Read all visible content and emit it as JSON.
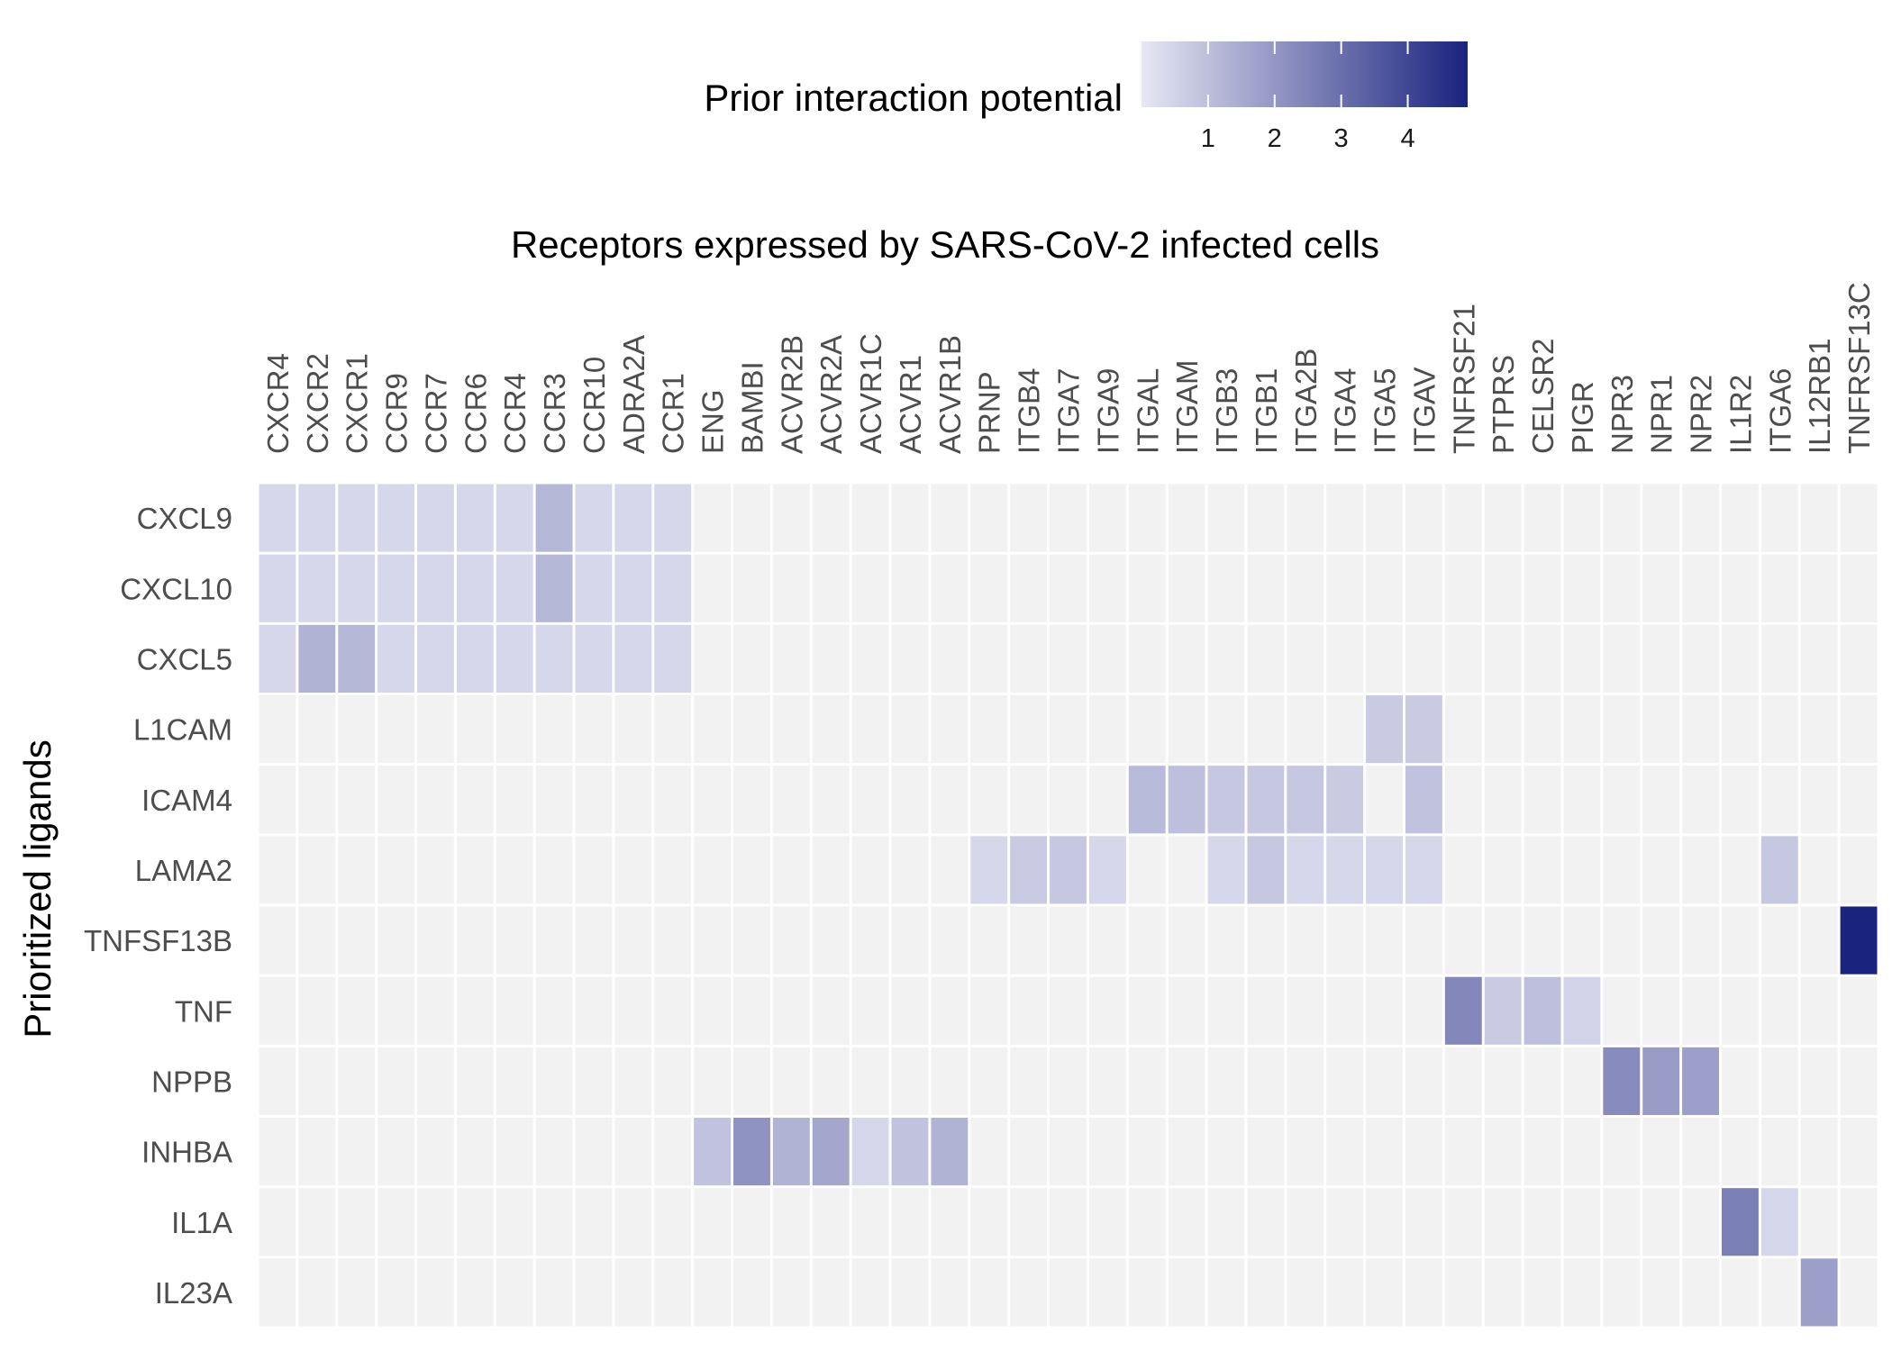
{
  "chart_data": {
    "type": "heatmap",
    "title": "Receptors expressed by SARS-CoV-2 infected cells",
    "ylabel": "Prioritized ligands",
    "legend": {
      "title": "Prior interaction potential",
      "placement": "top",
      "ticks": [
        1,
        2,
        3,
        4
      ],
      "range": [
        0,
        4.9
      ],
      "color_low": "#e7e7f4",
      "color_high": "#1a237e"
    },
    "empty_color": "#f2f2f2",
    "columns": [
      "CXCR4",
      "CXCR2",
      "CXCR1",
      "CCR9",
      "CCR7",
      "CCR6",
      "CCR4",
      "CCR3",
      "CCR10",
      "ADRA2A",
      "CCR1",
      "ENG",
      "BAMBI",
      "ACVR2B",
      "ACVR2A",
      "ACVR1C",
      "ACVR1",
      "ACVR1B",
      "PRNP",
      "ITGB4",
      "ITGA7",
      "ITGA9",
      "ITGAL",
      "ITGAM",
      "ITGB3",
      "ITGB1",
      "ITGA2B",
      "ITGA4",
      "ITGA5",
      "ITGAV",
      "TNFRSF21",
      "PTPRS",
      "CELSR2",
      "PIGR",
      "NPR3",
      "NPR1",
      "NPR2",
      "IL1R2",
      "ITGA6",
      "IL12RB1",
      "TNFRSF13C"
    ],
    "rows": [
      "CXCL9",
      "CXCL10",
      "CXCL5",
      "L1CAM",
      "ICAM4",
      "LAMA2",
      "TNFSF13B",
      "TNF",
      "NPPB",
      "INHBA",
      "IL1A",
      "IL23A"
    ],
    "cells": [
      {
        "row": "CXCL9",
        "col": "CXCR4",
        "value": 0.4
      },
      {
        "row": "CXCL9",
        "col": "CXCR2",
        "value": 0.4
      },
      {
        "row": "CXCL9",
        "col": "CXCR1",
        "value": 0.4
      },
      {
        "row": "CXCL9",
        "col": "CCR9",
        "value": 0.4
      },
      {
        "row": "CXCL9",
        "col": "CCR7",
        "value": 0.4
      },
      {
        "row": "CXCL9",
        "col": "CCR6",
        "value": 0.4
      },
      {
        "row": "CXCL9",
        "col": "CCR4",
        "value": 0.4
      },
      {
        "row": "CXCL9",
        "col": "CCR3",
        "value": 1.2
      },
      {
        "row": "CXCL9",
        "col": "CCR10",
        "value": 0.4
      },
      {
        "row": "CXCL9",
        "col": "ADRA2A",
        "value": 0.4
      },
      {
        "row": "CXCL9",
        "col": "CCR1",
        "value": 0.4
      },
      {
        "row": "CXCL10",
        "col": "CXCR4",
        "value": 0.4
      },
      {
        "row": "CXCL10",
        "col": "CXCR2",
        "value": 0.4
      },
      {
        "row": "CXCL10",
        "col": "CXCR1",
        "value": 0.4
      },
      {
        "row": "CXCL10",
        "col": "CCR9",
        "value": 0.4
      },
      {
        "row": "CXCL10",
        "col": "CCR7",
        "value": 0.4
      },
      {
        "row": "CXCL10",
        "col": "CCR6",
        "value": 0.4
      },
      {
        "row": "CXCL10",
        "col": "CCR4",
        "value": 0.4
      },
      {
        "row": "CXCL10",
        "col": "CCR3",
        "value": 1.2
      },
      {
        "row": "CXCL10",
        "col": "CCR10",
        "value": 0.4
      },
      {
        "row": "CXCL10",
        "col": "ADRA2A",
        "value": 0.4
      },
      {
        "row": "CXCL10",
        "col": "CCR1",
        "value": 0.4
      },
      {
        "row": "CXCL5",
        "col": "CXCR4",
        "value": 0.4
      },
      {
        "row": "CXCL5",
        "col": "CXCR2",
        "value": 1.3
      },
      {
        "row": "CXCL5",
        "col": "CXCR1",
        "value": 1.2
      },
      {
        "row": "CXCL5",
        "col": "CCR9",
        "value": 0.4
      },
      {
        "row": "CXCL5",
        "col": "CCR7",
        "value": 0.4
      },
      {
        "row": "CXCL5",
        "col": "CCR6",
        "value": 0.4
      },
      {
        "row": "CXCL5",
        "col": "CCR4",
        "value": 0.4
      },
      {
        "row": "CXCL5",
        "col": "CCR3",
        "value": 0.4
      },
      {
        "row": "CXCL5",
        "col": "CCR10",
        "value": 0.4
      },
      {
        "row": "CXCL5",
        "col": "ADRA2A",
        "value": 0.4
      },
      {
        "row": "CXCL5",
        "col": "CCR1",
        "value": 0.4
      },
      {
        "row": "L1CAM",
        "col": "ITGA5",
        "value": 0.7
      },
      {
        "row": "L1CAM",
        "col": "ITGAV",
        "value": 0.7
      },
      {
        "row": "ICAM4",
        "col": "ITGAL",
        "value": 1.1
      },
      {
        "row": "ICAM4",
        "col": "ITGAM",
        "value": 1.0
      },
      {
        "row": "ICAM4",
        "col": "ITGB3",
        "value": 0.8
      },
      {
        "row": "ICAM4",
        "col": "ITGB1",
        "value": 0.8
      },
      {
        "row": "ICAM4",
        "col": "ITGA2B",
        "value": 0.8
      },
      {
        "row": "ICAM4",
        "col": "ITGA4",
        "value": 0.7
      },
      {
        "row": "ICAM4",
        "col": "ITGAV",
        "value": 0.9
      },
      {
        "row": "LAMA2",
        "col": "PRNP",
        "value": 0.4
      },
      {
        "row": "LAMA2",
        "col": "ITGB4",
        "value": 0.7
      },
      {
        "row": "LAMA2",
        "col": "ITGA7",
        "value": 0.8
      },
      {
        "row": "LAMA2",
        "col": "ITGA9",
        "value": 0.4
      },
      {
        "row": "LAMA2",
        "col": "ITGB3",
        "value": 0.4
      },
      {
        "row": "LAMA2",
        "col": "ITGB1",
        "value": 0.8
      },
      {
        "row": "LAMA2",
        "col": "ITGA2B",
        "value": 0.4
      },
      {
        "row": "LAMA2",
        "col": "ITGA4",
        "value": 0.4
      },
      {
        "row": "LAMA2",
        "col": "ITGA5",
        "value": 0.4
      },
      {
        "row": "LAMA2",
        "col": "ITGAV",
        "value": 0.4
      },
      {
        "row": "LAMA2",
        "col": "ITGA6",
        "value": 0.8
      },
      {
        "row": "TNFSF13B",
        "col": "TNFRSF13C",
        "value": 4.9
      },
      {
        "row": "TNF",
        "col": "TNFRSF21",
        "value": 2.4
      },
      {
        "row": "TNF",
        "col": "PTPRS",
        "value": 0.7
      },
      {
        "row": "TNF",
        "col": "CELSR2",
        "value": 1.0
      },
      {
        "row": "TNF",
        "col": "PIGR",
        "value": 0.5
      },
      {
        "row": "NPPB",
        "col": "NPR3",
        "value": 2.3
      },
      {
        "row": "NPPB",
        "col": "NPR1",
        "value": 1.9
      },
      {
        "row": "NPPB",
        "col": "NPR2",
        "value": 1.8
      },
      {
        "row": "INHBA",
        "col": "ENG",
        "value": 0.9
      },
      {
        "row": "INHBA",
        "col": "BAMBI",
        "value": 2.1
      },
      {
        "row": "INHBA",
        "col": "ACVR2B",
        "value": 1.3
      },
      {
        "row": "INHBA",
        "col": "ACVR2A",
        "value": 1.6
      },
      {
        "row": "INHBA",
        "col": "ACVR1C",
        "value": 0.4
      },
      {
        "row": "INHBA",
        "col": "ACVR1",
        "value": 0.9
      },
      {
        "row": "INHBA",
        "col": "ACVR1B",
        "value": 1.3
      },
      {
        "row": "IL1A",
        "col": "IL1R2",
        "value": 2.6
      },
      {
        "row": "IL1A",
        "col": "ITGA6",
        "value": 0.4
      },
      {
        "row": "IL23A",
        "col": "IL12RB1",
        "value": 1.8
      }
    ]
  }
}
